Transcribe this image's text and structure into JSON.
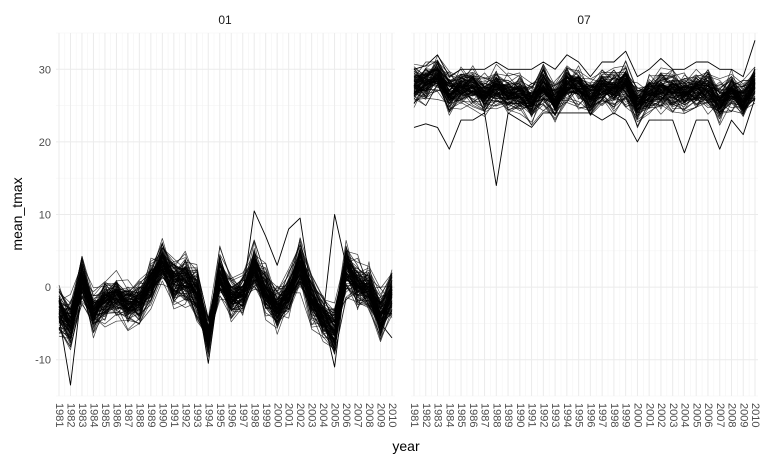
{
  "chart_data": {
    "type": "line",
    "title": "",
    "xlabel": "year",
    "ylabel": "mean_tmax",
    "x": [
      1981,
      1982,
      1983,
      1984,
      1985,
      1986,
      1987,
      1988,
      1989,
      1990,
      1991,
      1992,
      1993,
      1994,
      1995,
      1996,
      1997,
      1998,
      1999,
      2000,
      2001,
      2002,
      2003,
      2004,
      2005,
      2006,
      2007,
      2008,
      2009,
      2010
    ],
    "x_tick_labels": [
      "1981",
      "1982",
      "1983",
      "1984",
      "1985",
      "1986",
      "1987",
      "1988",
      "1989",
      "1990",
      "1991",
      "1992",
      "1993",
      "1994",
      "1995",
      "1996",
      "1997",
      "1998",
      "1999",
      "2000",
      "2001",
      "2002",
      "2003",
      "2004",
      "2005",
      "2006",
      "2007",
      "2008",
      "2009",
      "2010"
    ],
    "ylim": [
      -15,
      35
    ],
    "y_ticks": [
      -10,
      0,
      10,
      20,
      30
    ],
    "y_tick_labels": [
      "-10",
      "0",
      "10",
      "20",
      "30"
    ],
    "grid": true,
    "legend": "none",
    "line_color": "#000000",
    "series_per_panel": 100,
    "panels": [
      {
        "label": "01",
        "center": [
          -3.2,
          -5.0,
          1.0,
          -3.5,
          -2.0,
          -1.2,
          -2.5,
          -2.0,
          0.5,
          3.5,
          1.0,
          1.0,
          -0.8,
          -6.5,
          1.8,
          -1.5,
          -1.0,
          2.5,
          -0.5,
          -3.0,
          -1.0,
          3.2,
          -1.8,
          -4.0,
          -6.0,
          2.5,
          0.5,
          -0.5,
          -4.0,
          -1.0
        ],
        "spread": [
          4.0,
          4.0,
          3.5,
          3.5,
          3.5,
          3.5,
          3.5,
          3.5,
          3.5,
          3.5,
          4.0,
          4.0,
          4.0,
          3.5,
          4.0,
          3.5,
          3.5,
          4.0,
          4.0,
          3.5,
          3.5,
          4.0,
          4.0,
          3.5,
          4.0,
          4.5,
          4.0,
          4.0,
          4.0,
          3.8
        ],
        "outliers": [
          [
            -2,
            -3,
            0.5,
            -3,
            -2,
            -1,
            -2,
            -2,
            1,
            4,
            1,
            1,
            -1,
            -6,
            2,
            -1,
            -1,
            10.5,
            7,
            3,
            8,
            9.5,
            -1,
            -4,
            10,
            3,
            1,
            0,
            -4,
            -1
          ],
          [
            -4,
            -13.5,
            0,
            -4,
            -2,
            -1,
            -3,
            -2,
            0,
            3,
            1,
            1,
            -1,
            -10.5,
            1,
            -2,
            -1,
            2,
            0,
            -3,
            -1,
            3,
            -2,
            -4,
            -11,
            2,
            0,
            -1,
            -5,
            -7
          ]
        ]
      },
      {
        "label": "07",
        "center": [
          27.5,
          28.0,
          29.0,
          26.5,
          27.5,
          27.5,
          26.5,
          27.5,
          26.5,
          26.5,
          25.5,
          27.5,
          25.5,
          28.0,
          27.5,
          26.0,
          27.5,
          27.0,
          28.0,
          25.0,
          26.5,
          27.0,
          27.0,
          26.5,
          27.0,
          27.0,
          25.5,
          27.0,
          25.5,
          28.0
        ],
        "spread": [
          3.2,
          3.0,
          3.2,
          3.2,
          3.0,
          3.0,
          3.0,
          3.2,
          3.0,
          3.0,
          3.2,
          3.2,
          3.2,
          3.2,
          3.0,
          3.0,
          3.0,
          3.2,
          3.2,
          3.2,
          3.0,
          3.2,
          3.0,
          3.0,
          3.0,
          3.2,
          3.2,
          3.0,
          3.0,
          3.2
        ],
        "outliers": [
          [
            22,
            22.5,
            22,
            19,
            23,
            23,
            24,
            14,
            24,
            23,
            22,
            24,
            24,
            24,
            24,
            24,
            23,
            24,
            23,
            20,
            23,
            23,
            23,
            18.5,
            23,
            23,
            19,
            23,
            21,
            26
          ],
          [
            30,
            30.5,
            32,
            29,
            30,
            30,
            30,
            31,
            30,
            30,
            30,
            31,
            30,
            32,
            31,
            29,
            31,
            31,
            32.5,
            29,
            30,
            31.5,
            30,
            30,
            31,
            31,
            30,
            30,
            29,
            34
          ]
        ]
      }
    ]
  }
}
